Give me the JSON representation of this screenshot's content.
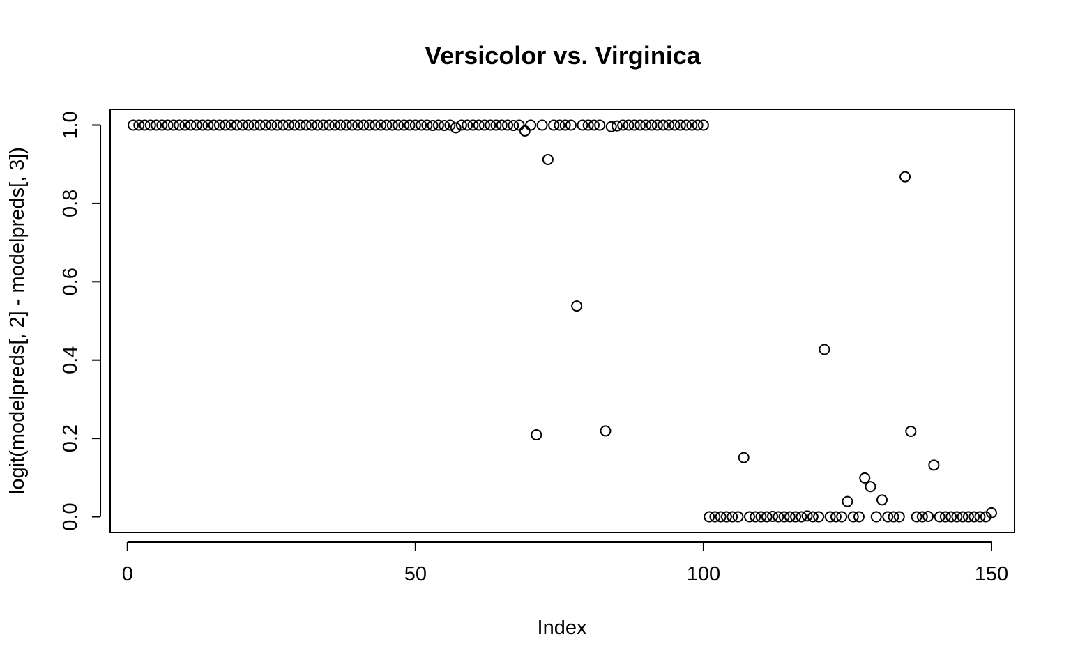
{
  "chart_data": {
    "type": "scatter",
    "title": "Versicolor vs. Virginica",
    "xlabel": "Index",
    "ylabel": "logit(modelpreds[, 2] - modelpreds[, 3])",
    "xlim": [
      -3,
      154
    ],
    "ylim": [
      -0.04,
      1.04
    ],
    "x_ticks": [
      0,
      50,
      100,
      150
    ],
    "x_tick_labels": [
      "0",
      "50",
      "100",
      "150"
    ],
    "y_ticks": [
      0.0,
      0.2,
      0.4,
      0.6,
      0.8,
      1.0
    ],
    "y_tick_labels": [
      "0.0",
      "0.2",
      "0.4",
      "0.6",
      "0.8",
      "1.0"
    ],
    "grid": false,
    "legend": false,
    "marker": "open-circle",
    "y": [
      1,
      1,
      1,
      1,
      1,
      1,
      1,
      1,
      1,
      1,
      1,
      1,
      1,
      1,
      1,
      1,
      1,
      1,
      1,
      1,
      1,
      1,
      1,
      1,
      1,
      1,
      1,
      1,
      1,
      1,
      1,
      1,
      1,
      1,
      1,
      1,
      1,
      1,
      1,
      1,
      1,
      1,
      1,
      1,
      1,
      1,
      1,
      1,
      1,
      1,
      1,
      1,
      0.999,
      1,
      0.999,
      1,
      0.993,
      1,
      1,
      1,
      1,
      1,
      1,
      1,
      1,
      1,
      0.999,
      1,
      0.985,
      1,
      0.209,
      1,
      0.912,
      1,
      1,
      1,
      1,
      0.538,
      1,
      1,
      1,
      1,
      0.219,
      0.996,
      0.998,
      1,
      1,
      1,
      1,
      1,
      1,
      1,
      1,
      1,
      1,
      1,
      1,
      1,
      1,
      1,
      0,
      0,
      0,
      0,
      0,
      0,
      0.151,
      0,
      0,
      0,
      0,
      0.001,
      0,
      0,
      0,
      0,
      0,
      0.002,
      0,
      0,
      0.427,
      0,
      0,
      0,
      0.039,
      0,
      0,
      0.099,
      0.077,
      0,
      0.043,
      0,
      0,
      0,
      0.868,
      0.218,
      0,
      0,
      0.001,
      0.132,
      0,
      0,
      0,
      0,
      0,
      0,
      0,
      0,
      0,
      0.01
    ]
  }
}
